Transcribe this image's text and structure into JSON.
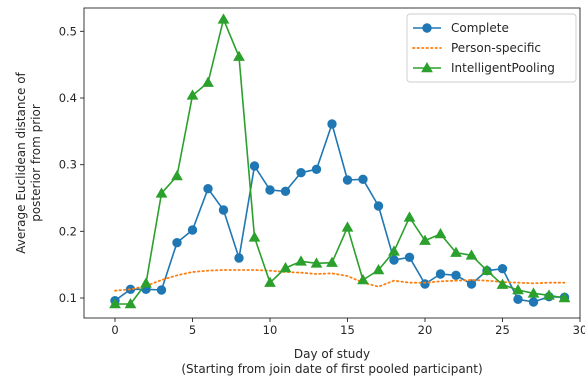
{
  "chart_data": {
    "type": "line",
    "xlabel": "Day of study",
    "xlabel_line2": "(Starting from join date of first pooled participant)",
    "ylabel": "Average Euclidean distance of",
    "ylabel_line2": "posterior from prior",
    "xlim": [
      -2,
      30
    ],
    "ylim": [
      0.07,
      0.535
    ],
    "xticks": [
      0,
      5,
      10,
      15,
      20,
      25,
      30
    ],
    "yticks": [
      0.1,
      0.2,
      0.3,
      0.4,
      0.5
    ],
    "grid": false,
    "legend_position": "top-right",
    "x": [
      0,
      1,
      2,
      3,
      4,
      5,
      6,
      7,
      8,
      9,
      10,
      11,
      12,
      13,
      14,
      15,
      16,
      17,
      18,
      19,
      20,
      21,
      22,
      23,
      24,
      25,
      26,
      27,
      28,
      29
    ],
    "series": [
      {
        "name": "Complete",
        "color": "#1f77b4",
        "style": "solid",
        "marker": "circle",
        "values": [
          0.096,
          0.113,
          0.113,
          0.112,
          0.183,
          0.202,
          0.264,
          0.232,
          0.16,
          0.298,
          0.262,
          0.26,
          0.288,
          0.293,
          0.361,
          0.277,
          0.278,
          0.238,
          0.157,
          0.161,
          0.121,
          0.136,
          0.134,
          0.121,
          0.141,
          0.144,
          0.098,
          0.094,
          0.102,
          0.101
        ]
      },
      {
        "name": "Person-specific",
        "color": "#ff7f0e",
        "style": "dotted",
        "marker": "none",
        "values": [
          0.111,
          0.113,
          0.118,
          0.127,
          0.134,
          0.139,
          0.141,
          0.142,
          0.142,
          0.142,
          0.141,
          0.139,
          0.138,
          0.136,
          0.137,
          0.133,
          0.123,
          0.117,
          0.126,
          0.123,
          0.123,
          0.125,
          0.126,
          0.127,
          0.126,
          0.124,
          0.123,
          0.122,
          0.123,
          0.123
        ]
      },
      {
        "name": "IntelligentPooling",
        "color": "#2ca02c",
        "style": "solid",
        "marker": "triangle",
        "values": [
          0.091,
          0.091,
          0.122,
          0.257,
          0.283,
          0.404,
          0.423,
          0.518,
          0.462,
          0.191,
          0.123,
          0.145,
          0.155,
          0.152,
          0.153,
          0.206,
          0.127,
          0.142,
          0.17,
          0.221,
          0.186,
          0.196,
          0.168,
          0.164,
          0.141,
          0.12,
          0.112,
          0.107,
          0.104,
          0.1
        ]
      }
    ]
  }
}
